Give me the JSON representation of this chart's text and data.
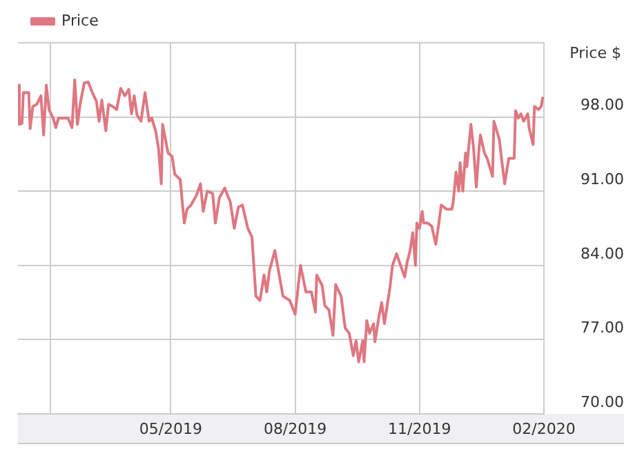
{
  "chart_data": {
    "type": "line",
    "ylabel": "Price $",
    "legend": "top left",
    "grid": true,
    "marker": "none",
    "line_style": "solid",
    "xlim": [
      "2019-01-08",
      "2020-02-01"
    ],
    "xticks": [
      {
        "value": "2019-02-01",
        "label": null
      },
      {
        "value": "2019-05-01",
        "label": "05/2019"
      },
      {
        "value": "2019-08-01",
        "label": "08/2019"
      },
      {
        "value": "2019-11-01",
        "label": "11/2019"
      },
      {
        "value": "2020-02-01",
        "label": "02/2020"
      }
    ],
    "ylim": [
      70,
      105
    ],
    "yticks": [
      {
        "value": 70,
        "label": "70.00"
      },
      {
        "value": 77,
        "label": "77.00"
      },
      {
        "value": 84,
        "label": "84.00"
      },
      {
        "value": 91,
        "label": "91.00"
      },
      {
        "value": 98,
        "label": "98.00"
      },
      {
        "value": 105,
        "label": null
      }
    ],
    "x": [
      "2019-01-08",
      "2019-01-09",
      "2019-01-11",
      "2019-01-12",
      "2019-01-16",
      "2019-01-17",
      "2019-01-19",
      "2019-01-22",
      "2019-01-25",
      "2019-01-27",
      "2019-01-29",
      "2019-01-31",
      "2019-02-03",
      "2019-02-05",
      "2019-02-07",
      "2019-02-10",
      "2019-02-14",
      "2019-02-17",
      "2019-02-19",
      "2019-02-21",
      "2019-02-23",
      "2019-02-26",
      "2019-03-01",
      "2019-03-04",
      "2019-03-07",
      "2019-03-09",
      "2019-03-11",
      "2019-03-14",
      "2019-03-16",
      "2019-03-19",
      "2019-03-22",
      "2019-03-25",
      "2019-03-28",
      "2019-03-31",
      "2019-04-02",
      "2019-04-04",
      "2019-04-06",
      "2019-04-09",
      "2019-04-12",
      "2019-04-15",
      "2019-04-17",
      "2019-04-20",
      "2019-04-22",
      "2019-04-24",
      "2019-04-25",
      "2019-04-29",
      "2019-05-02",
      "2019-05-04",
      "2019-05-08",
      "2019-05-11",
      "2019-05-13",
      "2019-05-16",
      "2019-05-20",
      "2019-05-23",
      "2019-05-25",
      "2019-05-28",
      "2019-06-01",
      "2019-06-03",
      "2019-06-06",
      "2019-06-10",
      "2019-06-12",
      "2019-06-14",
      "2019-06-17",
      "2019-06-20",
      "2019-06-23",
      "2019-06-27",
      "2019-06-30",
      "2019-07-03",
      "2019-07-06",
      "2019-07-09",
      "2019-07-11",
      "2019-07-13",
      "2019-07-17",
      "2019-07-23",
      "2019-07-28",
      "2019-08-01",
      "2019-08-05",
      "2019-08-09",
      "2019-08-13",
      "2019-08-16",
      "2019-08-17",
      "2019-08-21",
      "2019-08-23",
      "2019-08-26",
      "2019-08-29",
      "2019-08-31",
      "2019-09-04",
      "2019-09-07",
      "2019-09-10",
      "2019-09-13",
      "2019-09-15",
      "2019-09-17",
      "2019-09-20",
      "2019-09-21",
      "2019-09-23",
      "2019-09-25",
      "2019-09-28",
      "2019-09-29",
      "2019-10-02",
      "2019-10-04",
      "2019-10-06",
      "2019-10-10",
      "2019-10-12",
      "2019-10-15",
      "2019-10-18",
      "2019-10-21",
      "2019-10-23",
      "2019-10-25",
      "2019-10-27",
      "2019-10-29",
      "2019-10-30",
      "2019-11-01",
      "2019-11-03",
      "2019-11-04",
      "2019-11-07",
      "2019-11-10",
      "2019-11-13",
      "2019-11-15",
      "2019-11-17",
      "2019-11-21",
      "2019-11-25",
      "2019-11-26",
      "2019-11-28",
      "2019-11-30",
      "2019-12-01",
      "2019-12-03",
      "2019-12-05",
      "2019-12-06",
      "2019-12-09",
      "2019-12-11",
      "2019-12-13",
      "2019-12-15",
      "2019-12-16",
      "2019-12-19",
      "2019-12-21",
      "2019-12-25",
      "2019-12-26",
      "2019-12-30",
      "2020-01-01",
      "2020-01-03",
      "2020-01-06",
      "2020-01-10",
      "2020-01-11",
      "2020-01-13",
      "2020-01-15",
      "2020-01-17",
      "2020-01-20",
      "2020-01-21",
      "2020-01-24",
      "2020-01-25",
      "2020-01-28",
      "2020-01-30",
      "2020-01-31"
    ],
    "series": [
      {
        "name": "Price",
        "color": "#df7781",
        "values": [
          101.0,
          97.3,
          97.4,
          100.3,
          100.3,
          96.9,
          99.0,
          99.2,
          100.0,
          96.3,
          101.0,
          98.7,
          97.9,
          97.0,
          97.9,
          97.9,
          97.9,
          97.0,
          101.5,
          97.3,
          99.2,
          101.2,
          101.3,
          100.3,
          99.5,
          97.6,
          99.6,
          96.7,
          99.2,
          99.0,
          98.7,
          100.7,
          100.0,
          100.6,
          98.3,
          100.0,
          98.2,
          97.6,
          100.3,
          97.6,
          97.9,
          96.6,
          95.0,
          91.7,
          97.3,
          94.6,
          94.3,
          92.6,
          92.1,
          88.0,
          89.3,
          89.7,
          90.6,
          91.7,
          89.1,
          91.0,
          90.8,
          88.0,
          90.4,
          91.3,
          90.6,
          90.0,
          87.5,
          89.5,
          89.7,
          87.5,
          86.7,
          81.1,
          80.7,
          83.1,
          81.5,
          83.5,
          85.4,
          81.1,
          80.7,
          79.4,
          84.0,
          81.5,
          81.5,
          79.6,
          83.1,
          82.1,
          80.2,
          79.8,
          77.4,
          82.2,
          81.1,
          78.1,
          77.6,
          75.5,
          76.9,
          74.9,
          76.9,
          74.9,
          78.8,
          77.6,
          78.5,
          76.8,
          79.2,
          80.5,
          78.5,
          81.8,
          84.0,
          85.1,
          84.0,
          82.9,
          84.4,
          85.4,
          87.1,
          84.0,
          88.0,
          87.5,
          89.1,
          88.0,
          88.0,
          87.7,
          86.0,
          87.7,
          89.7,
          89.3,
          89.3,
          90.1,
          92.8,
          91.0,
          93.7,
          91.0,
          94.6,
          93.3,
          97.3,
          95.0,
          91.4,
          95.0,
          96.3,
          94.6,
          94.1,
          92.4,
          97.6,
          95.9,
          93.7,
          91.7,
          94.1,
          94.1,
          98.6,
          97.9,
          98.3,
          97.6,
          98.3,
          97.0,
          95.4,
          99.0,
          98.7,
          99.0,
          99.8
        ]
      }
    ]
  }
}
